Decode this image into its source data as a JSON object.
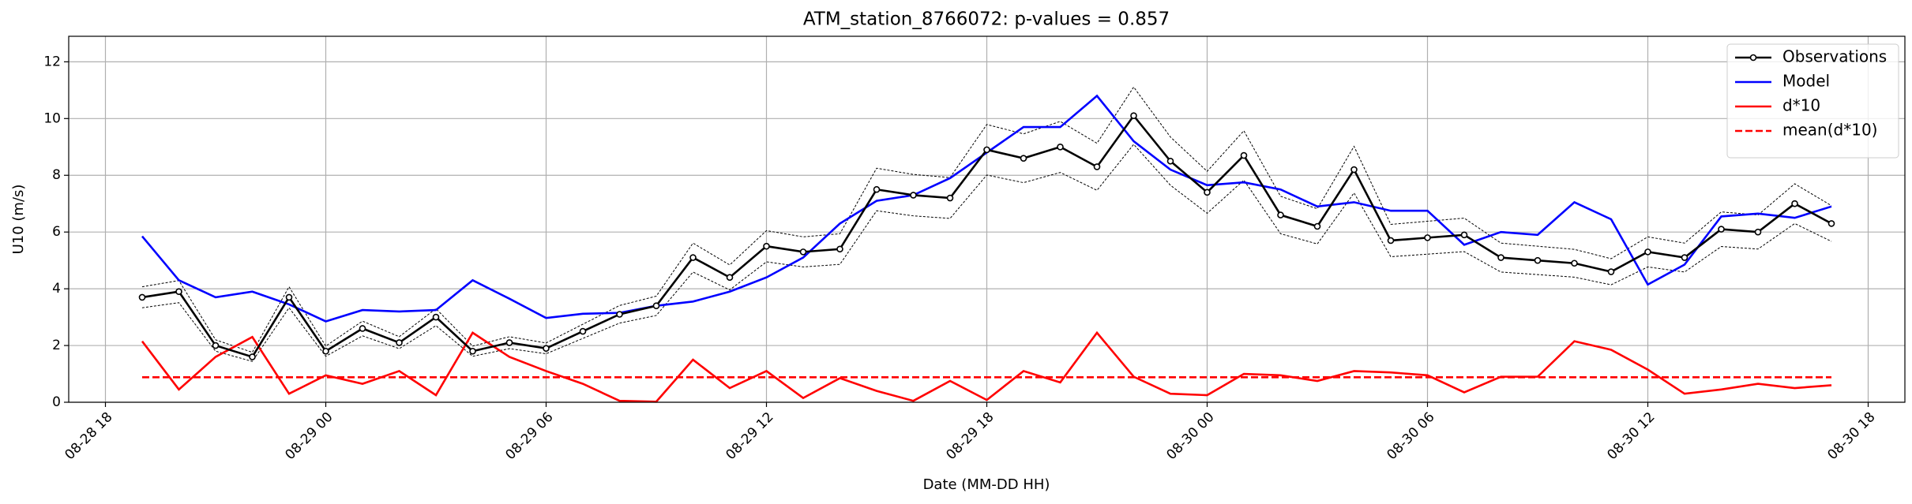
{
  "chart_data": {
    "type": "line",
    "title": "ATM_station_8766072: p-values = 0.857",
    "xlabel": "Date (MM-DD HH)",
    "ylabel": "U10 (m/s)",
    "x": [
      "08-28 19",
      "08-28 20",
      "08-28 21",
      "08-28 22",
      "08-28 23",
      "08-29 00",
      "08-29 01",
      "08-29 02",
      "08-29 03",
      "08-29 04",
      "08-29 05",
      "08-29 06",
      "08-29 07",
      "08-29 08",
      "08-29 09",
      "08-29 10",
      "08-29 11",
      "08-29 12",
      "08-29 13",
      "08-29 14",
      "08-29 15",
      "08-29 16",
      "08-29 17",
      "08-29 18",
      "08-29 19",
      "08-29 20",
      "08-29 21",
      "08-29 22",
      "08-29 23",
      "08-30 00",
      "08-30 01",
      "08-30 02",
      "08-30 03",
      "08-30 04",
      "08-30 05",
      "08-30 06",
      "08-30 07",
      "08-30 08",
      "08-30 09",
      "08-30 10",
      "08-30 11",
      "08-30 12",
      "08-30 13",
      "08-30 14",
      "08-30 15",
      "08-30 16",
      "08-30 17"
    ],
    "xlim": [
      "08-28 17",
      "08-30 19"
    ],
    "xticks": [
      "08-28 18",
      "08-29 00",
      "08-29 06",
      "08-29 12",
      "08-29 18",
      "08-30 00",
      "08-30 06",
      "08-30 12",
      "08-30 18"
    ],
    "ylim": [
      0,
      12.9
    ],
    "yticks": [
      0,
      2,
      4,
      6,
      8,
      10,
      12
    ],
    "grid": true,
    "legend": "upper right",
    "series": [
      {
        "name": "Observations",
        "color": "#000000",
        "linestyle": "solid",
        "marker": "o",
        "values": [
          3.7,
          3.9,
          2.0,
          1.6,
          3.7,
          1.8,
          2.6,
          2.1,
          3.0,
          1.8,
          2.1,
          1.9,
          2.5,
          3.1,
          3.4,
          5.1,
          4.4,
          5.5,
          5.3,
          5.4,
          7.5,
          7.3,
          7.2,
          8.9,
          8.6,
          9.0,
          8.3,
          10.1,
          8.5,
          7.4,
          8.7,
          6.6,
          6.2,
          8.2,
          5.7,
          5.8,
          5.9,
          5.1,
          5.0,
          4.9,
          4.6,
          5.3,
          5.1,
          6.1,
          6.0,
          7.0,
          6.3
        ]
      },
      {
        "name": "Model",
        "color": "#0000ff",
        "linestyle": "solid",
        "values": [
          5.85,
          4.3,
          3.7,
          3.9,
          3.45,
          2.85,
          3.25,
          3.2,
          3.25,
          4.3,
          3.65,
          2.97,
          3.12,
          3.15,
          3.4,
          3.55,
          3.9,
          4.4,
          5.1,
          6.3,
          7.1,
          7.3,
          7.9,
          8.8,
          9.7,
          9.7,
          10.8,
          9.2,
          8.2,
          7.65,
          7.75,
          7.5,
          6.9,
          7.05,
          6.75,
          6.75,
          5.55,
          6.0,
          5.9,
          7.05,
          6.45,
          4.15,
          4.85,
          6.55,
          6.65,
          6.5,
          6.9
        ]
      },
      {
        "name": "d*10",
        "color": "#ff0000",
        "linestyle": "solid",
        "values": [
          2.15,
          0.45,
          1.6,
          2.3,
          0.3,
          0.95,
          0.65,
          1.1,
          0.25,
          2.45,
          1.6,
          1.1,
          0.65,
          0.05,
          0.02,
          1.5,
          0.5,
          1.1,
          0.15,
          0.85,
          0.4,
          0.05,
          0.75,
          0.08,
          1.1,
          0.7,
          2.45,
          0.9,
          0.3,
          0.25,
          1.0,
          0.95,
          0.75,
          1.1,
          1.05,
          0.95,
          0.35,
          0.9,
          0.9,
          2.15,
          1.85,
          1.15,
          0.3,
          0.45,
          0.65,
          0.5,
          0.6
        ]
      },
      {
        "name": "mean(d*10)",
        "color": "#ff0000",
        "linestyle": "dashed",
        "y": 0.88
      },
      {
        "color": "#000000",
        "linestyle": "dotted",
        "values": [
          4.07,
          4.29,
          2.2,
          1.76,
          4.07,
          1.98,
          2.86,
          2.31,
          3.3,
          1.98,
          2.31,
          2.09,
          2.75,
          3.41,
          3.74,
          5.61,
          4.84,
          6.05,
          5.83,
          5.94,
          8.25,
          8.03,
          7.92,
          9.79,
          9.46,
          9.9,
          9.13,
          11.11,
          9.35,
          8.14,
          9.57,
          7.26,
          6.82,
          9.02,
          6.27,
          6.38,
          6.49,
          5.61,
          5.5,
          5.39,
          5.06,
          5.83,
          5.61,
          6.71,
          6.6,
          7.7,
          6.93
        ]
      },
      {
        "color": "#000000",
        "linestyle": "dotted",
        "values": [
          3.33,
          3.51,
          1.8,
          1.44,
          3.33,
          1.62,
          2.34,
          1.89,
          2.7,
          1.62,
          1.89,
          1.71,
          2.25,
          2.79,
          3.06,
          4.59,
          3.96,
          4.95,
          4.77,
          4.86,
          6.75,
          6.57,
          6.48,
          8.01,
          7.74,
          8.1,
          7.47,
          9.09,
          7.65,
          6.66,
          7.83,
          5.94,
          5.58,
          7.38,
          5.13,
          5.22,
          5.31,
          4.59,
          4.5,
          4.41,
          4.14,
          4.77,
          4.59,
          5.49,
          5.4,
          6.3,
          5.67
        ]
      }
    ]
  }
}
